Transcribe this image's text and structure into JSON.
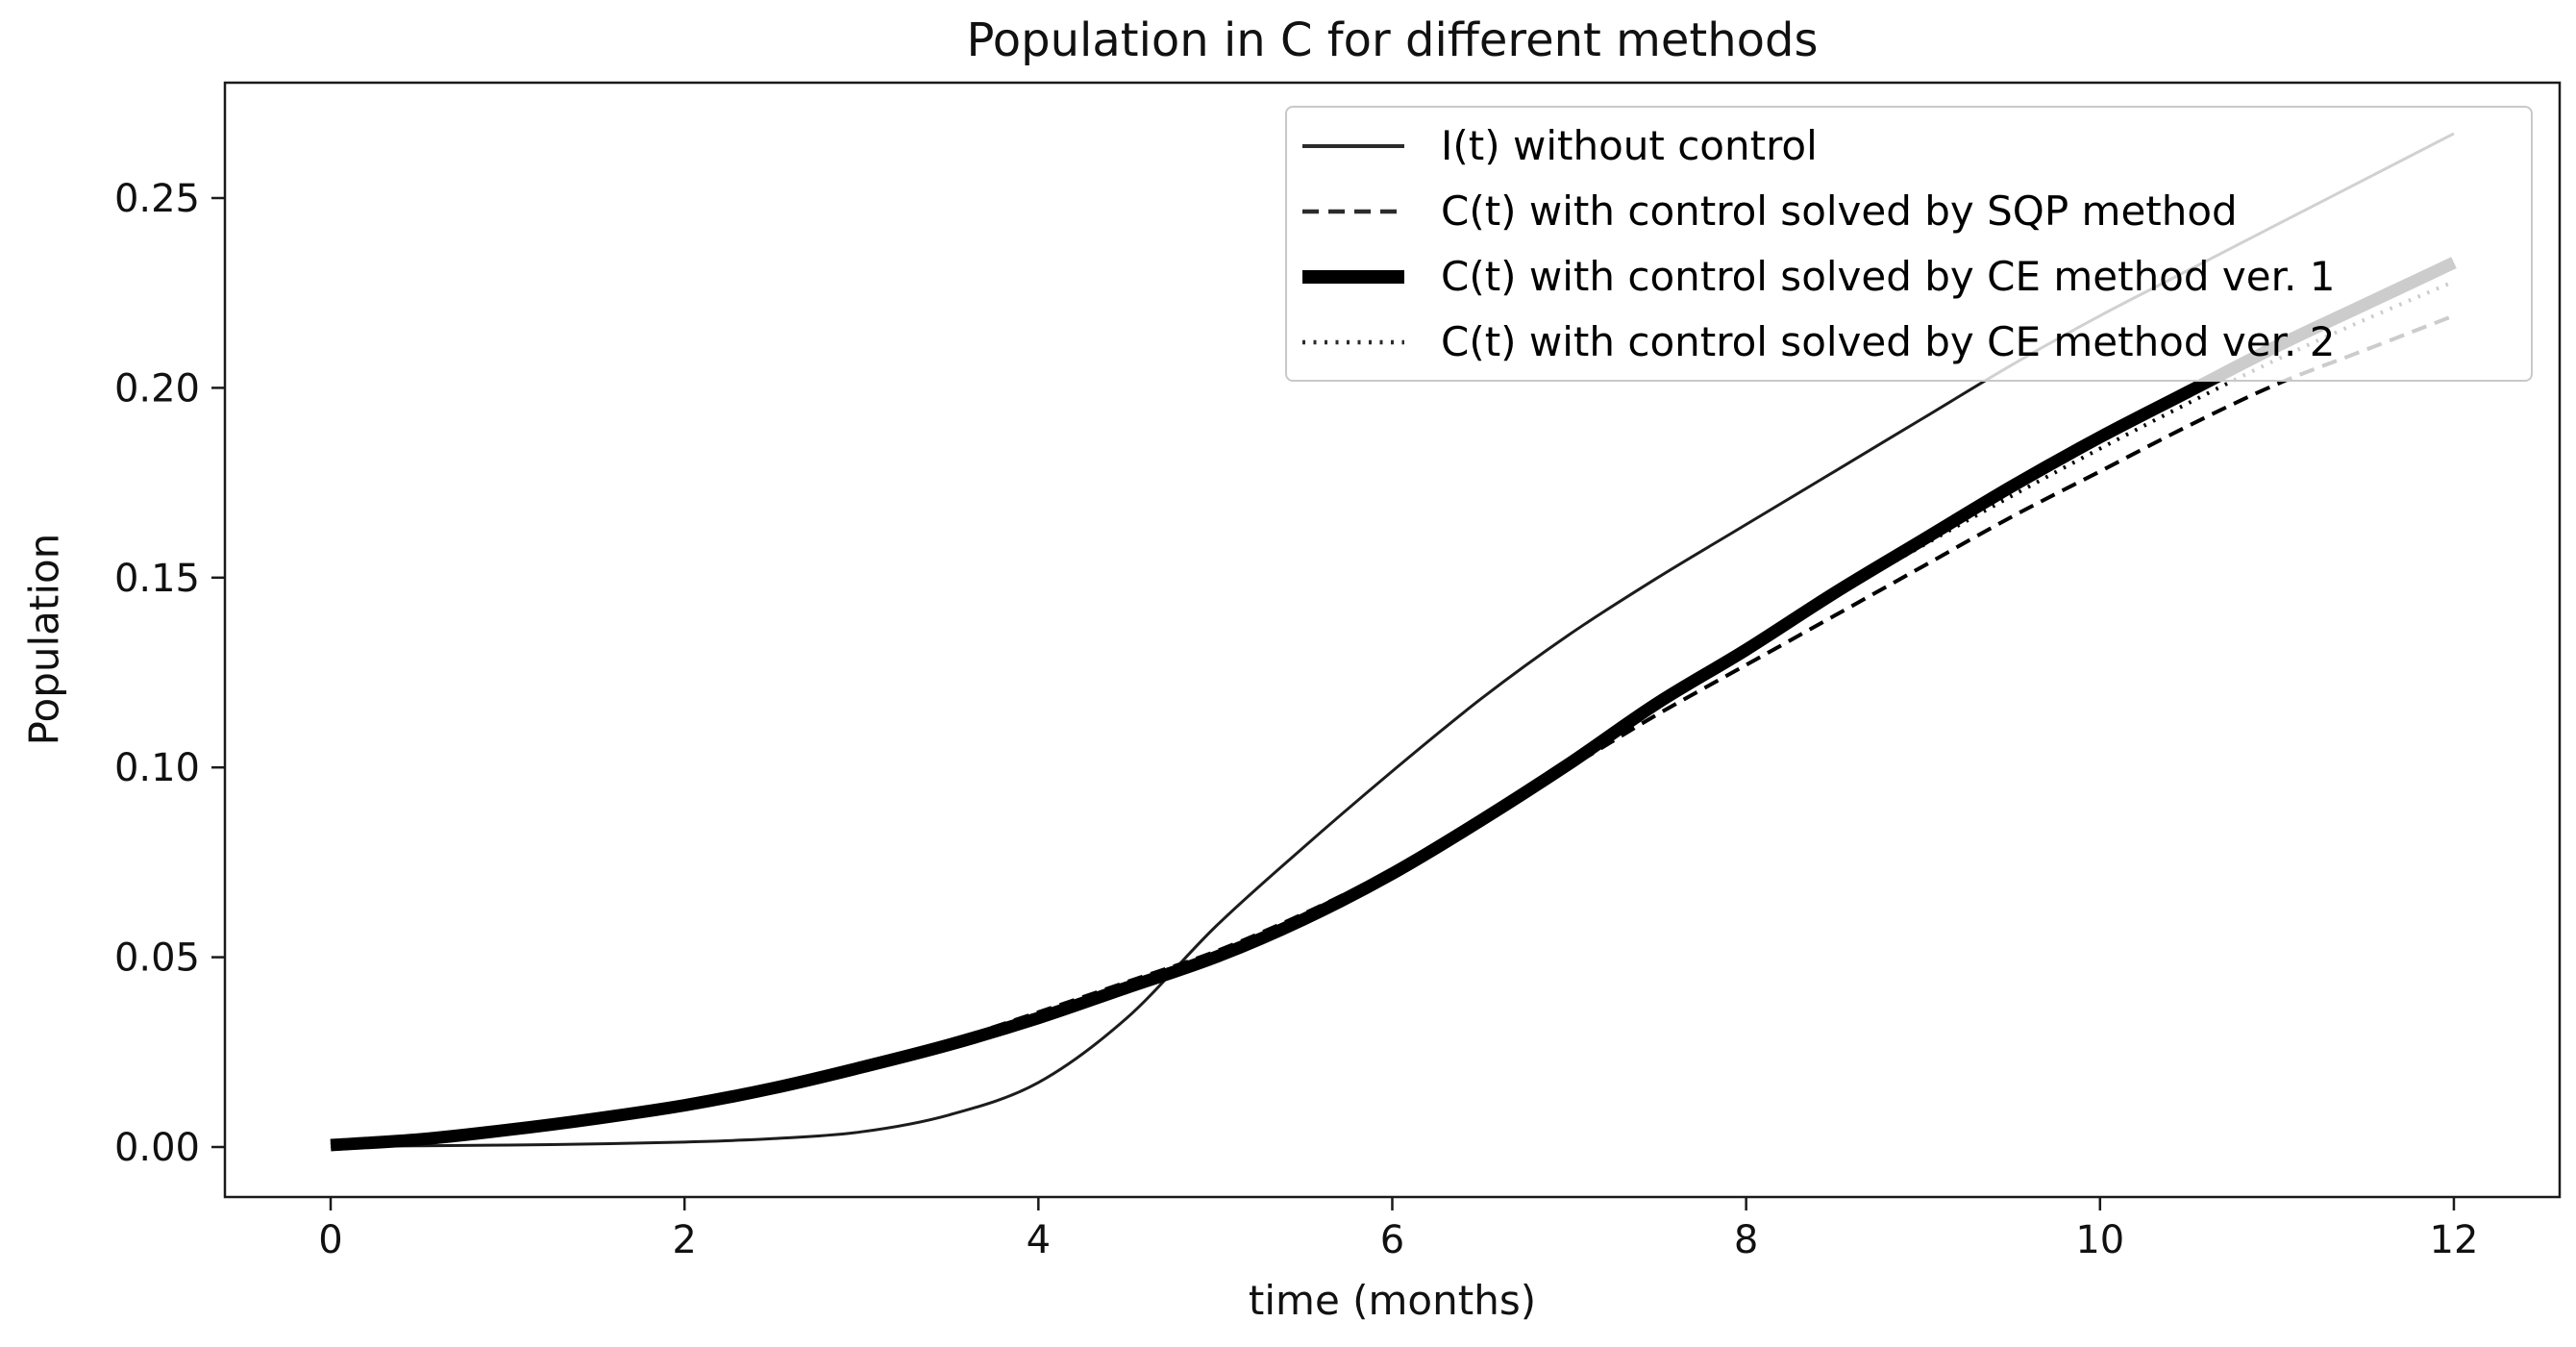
{
  "title": "Population in C for different methods",
  "axes": {
    "xlabel": "time (months)",
    "ylabel": "Population",
    "x_tick_labels": [
      "0",
      "2",
      "4",
      "6",
      "8",
      "10",
      "12"
    ],
    "x_tick_values": [
      0,
      2,
      4,
      6,
      8,
      10,
      12
    ],
    "y_tick_labels": [
      "0.00",
      "0.05",
      "0.10",
      "0.15",
      "0.20",
      "0.25"
    ],
    "y_tick_values": [
      0.0,
      0.05,
      0.1,
      0.15,
      0.2,
      0.25
    ]
  },
  "legend": {
    "position": "upper right",
    "items": [
      {
        "label": "I(t) without control",
        "style": "solid-thin",
        "icon": "solid-thin-line-icon"
      },
      {
        "label": "C(t) with control solved by SQP method",
        "style": "dashed",
        "icon": "dashed-line-icon"
      },
      {
        "label": "C(t) with control solved by CE method ver. 1",
        "style": "solid-thick",
        "icon": "solid-thick-line-icon"
      },
      {
        "label": "C(t) with control solved by CE method ver. 2",
        "style": "dotted",
        "icon": "dotted-line-icon"
      }
    ]
  },
  "colors": {
    "line": "#000000",
    "thin_line": "#1c1c1c",
    "spine": "#1a1a1a",
    "text": "#111111",
    "legend_border": "#c9c9c9",
    "legend_background": "rgba(255,255,255,0.8)"
  },
  "chart_data": {
    "type": "line",
    "title": "Population in C for different methods",
    "xlabel": "time (months)",
    "ylabel": "Population",
    "xlim": [
      0,
      12
    ],
    "ylim": [
      -0.013,
      0.28
    ],
    "grid": false,
    "legend_position": "upper right",
    "x": [
      0,
      0.5,
      1,
      1.5,
      2,
      2.5,
      3,
      3.5,
      4,
      4.5,
      5,
      5.5,
      6,
      6.5,
      7,
      7.5,
      8,
      8.5,
      9,
      9.5,
      10,
      10.5,
      11,
      11.5,
      12
    ],
    "series": [
      {
        "name": "I(t) without control",
        "style": "solid-thin",
        "values": [
          0.0002,
          0.0003,
          0.0005,
          0.0008,
          0.0013,
          0.0022,
          0.004,
          0.0085,
          0.017,
          0.034,
          0.058,
          0.079,
          0.099,
          0.118,
          0.135,
          0.15,
          0.164,
          0.178,
          0.192,
          0.206,
          0.219,
          0.231,
          0.243,
          0.255,
          0.267
        ]
      },
      {
        "name": "C(t) with control solved by SQP method",
        "style": "dashed",
        "values": [
          0.0005,
          0.002,
          0.0045,
          0.008,
          0.0115,
          0.016,
          0.022,
          0.028,
          0.0355,
          0.0435,
          0.0515,
          0.0615,
          0.073,
          0.0865,
          0.1,
          0.114,
          0.127,
          0.14,
          0.153,
          0.166,
          0.178,
          0.19,
          0.201,
          0.21,
          0.219
        ]
      },
      {
        "name": "C(t) with control solved by CE method ver. 1",
        "style": "solid-thick",
        "values": [
          0.0005,
          0.002,
          0.0045,
          0.0075,
          0.011,
          0.0155,
          0.021,
          0.027,
          0.034,
          0.042,
          0.05,
          0.06,
          0.072,
          0.086,
          0.101,
          0.117,
          0.131,
          0.146,
          0.16,
          0.174,
          0.187,
          0.199,
          0.211,
          0.222,
          0.233
        ]
      },
      {
        "name": "C(t) with control solved by CE method ver. 2",
        "style": "dotted",
        "values": [
          0.0005,
          0.002,
          0.0045,
          0.008,
          0.0115,
          0.016,
          0.0215,
          0.0275,
          0.035,
          0.043,
          0.051,
          0.0612,
          0.0728,
          0.0868,
          0.1015,
          0.1165,
          0.1305,
          0.145,
          0.1585,
          0.1715,
          0.184,
          0.196,
          0.2075,
          0.218,
          0.228
        ]
      }
    ]
  }
}
